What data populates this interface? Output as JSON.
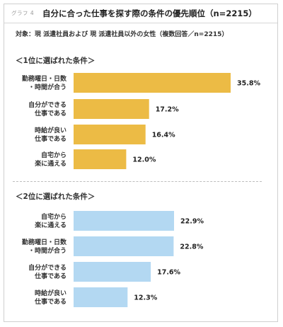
{
  "header": {
    "graph_tag": "グラフ 4",
    "title": "自分に合った仕事を探す際の条件の優先順位（n=2215）"
  },
  "subject": "対象：現 派遣社員および 現 派遣社員以外の女性（複数回答／n=2215）",
  "colors": {
    "first": "#ecbb45",
    "second": "#b3d8f2"
  },
  "chart_data": [
    {
      "type": "bar",
      "orientation": "horizontal",
      "title": "＜1位に選ばれた条件＞",
      "categories": [
        [
          "勤務曜日・日数",
          "・時間が合う"
        ],
        [
          "自分ができる",
          "仕事である"
        ],
        [
          "時給が良い",
          "仕事である"
        ],
        [
          "自宅から",
          "楽に通える"
        ]
      ],
      "values": [
        35.8,
        17.2,
        16.4,
        12.0
      ],
      "value_labels": [
        "35.8%",
        "17.2%",
        "16.4%",
        "12.0%"
      ],
      "xlim": [
        0,
        40
      ]
    },
    {
      "type": "bar",
      "orientation": "horizontal",
      "title": "＜2位に選ばれた条件＞",
      "categories": [
        [
          "自宅から",
          "楽に通える"
        ],
        [
          "勤務曜日・日数",
          "・時間が合う"
        ],
        [
          "自分ができる",
          "仕事である"
        ],
        [
          "時給が良い",
          "仕事である"
        ]
      ],
      "values": [
        22.9,
        22.8,
        17.6,
        12.3
      ],
      "value_labels": [
        "22.9%",
        "22.8%",
        "17.6%",
        "12.3%"
      ],
      "xlim": [
        0,
        40
      ]
    }
  ]
}
